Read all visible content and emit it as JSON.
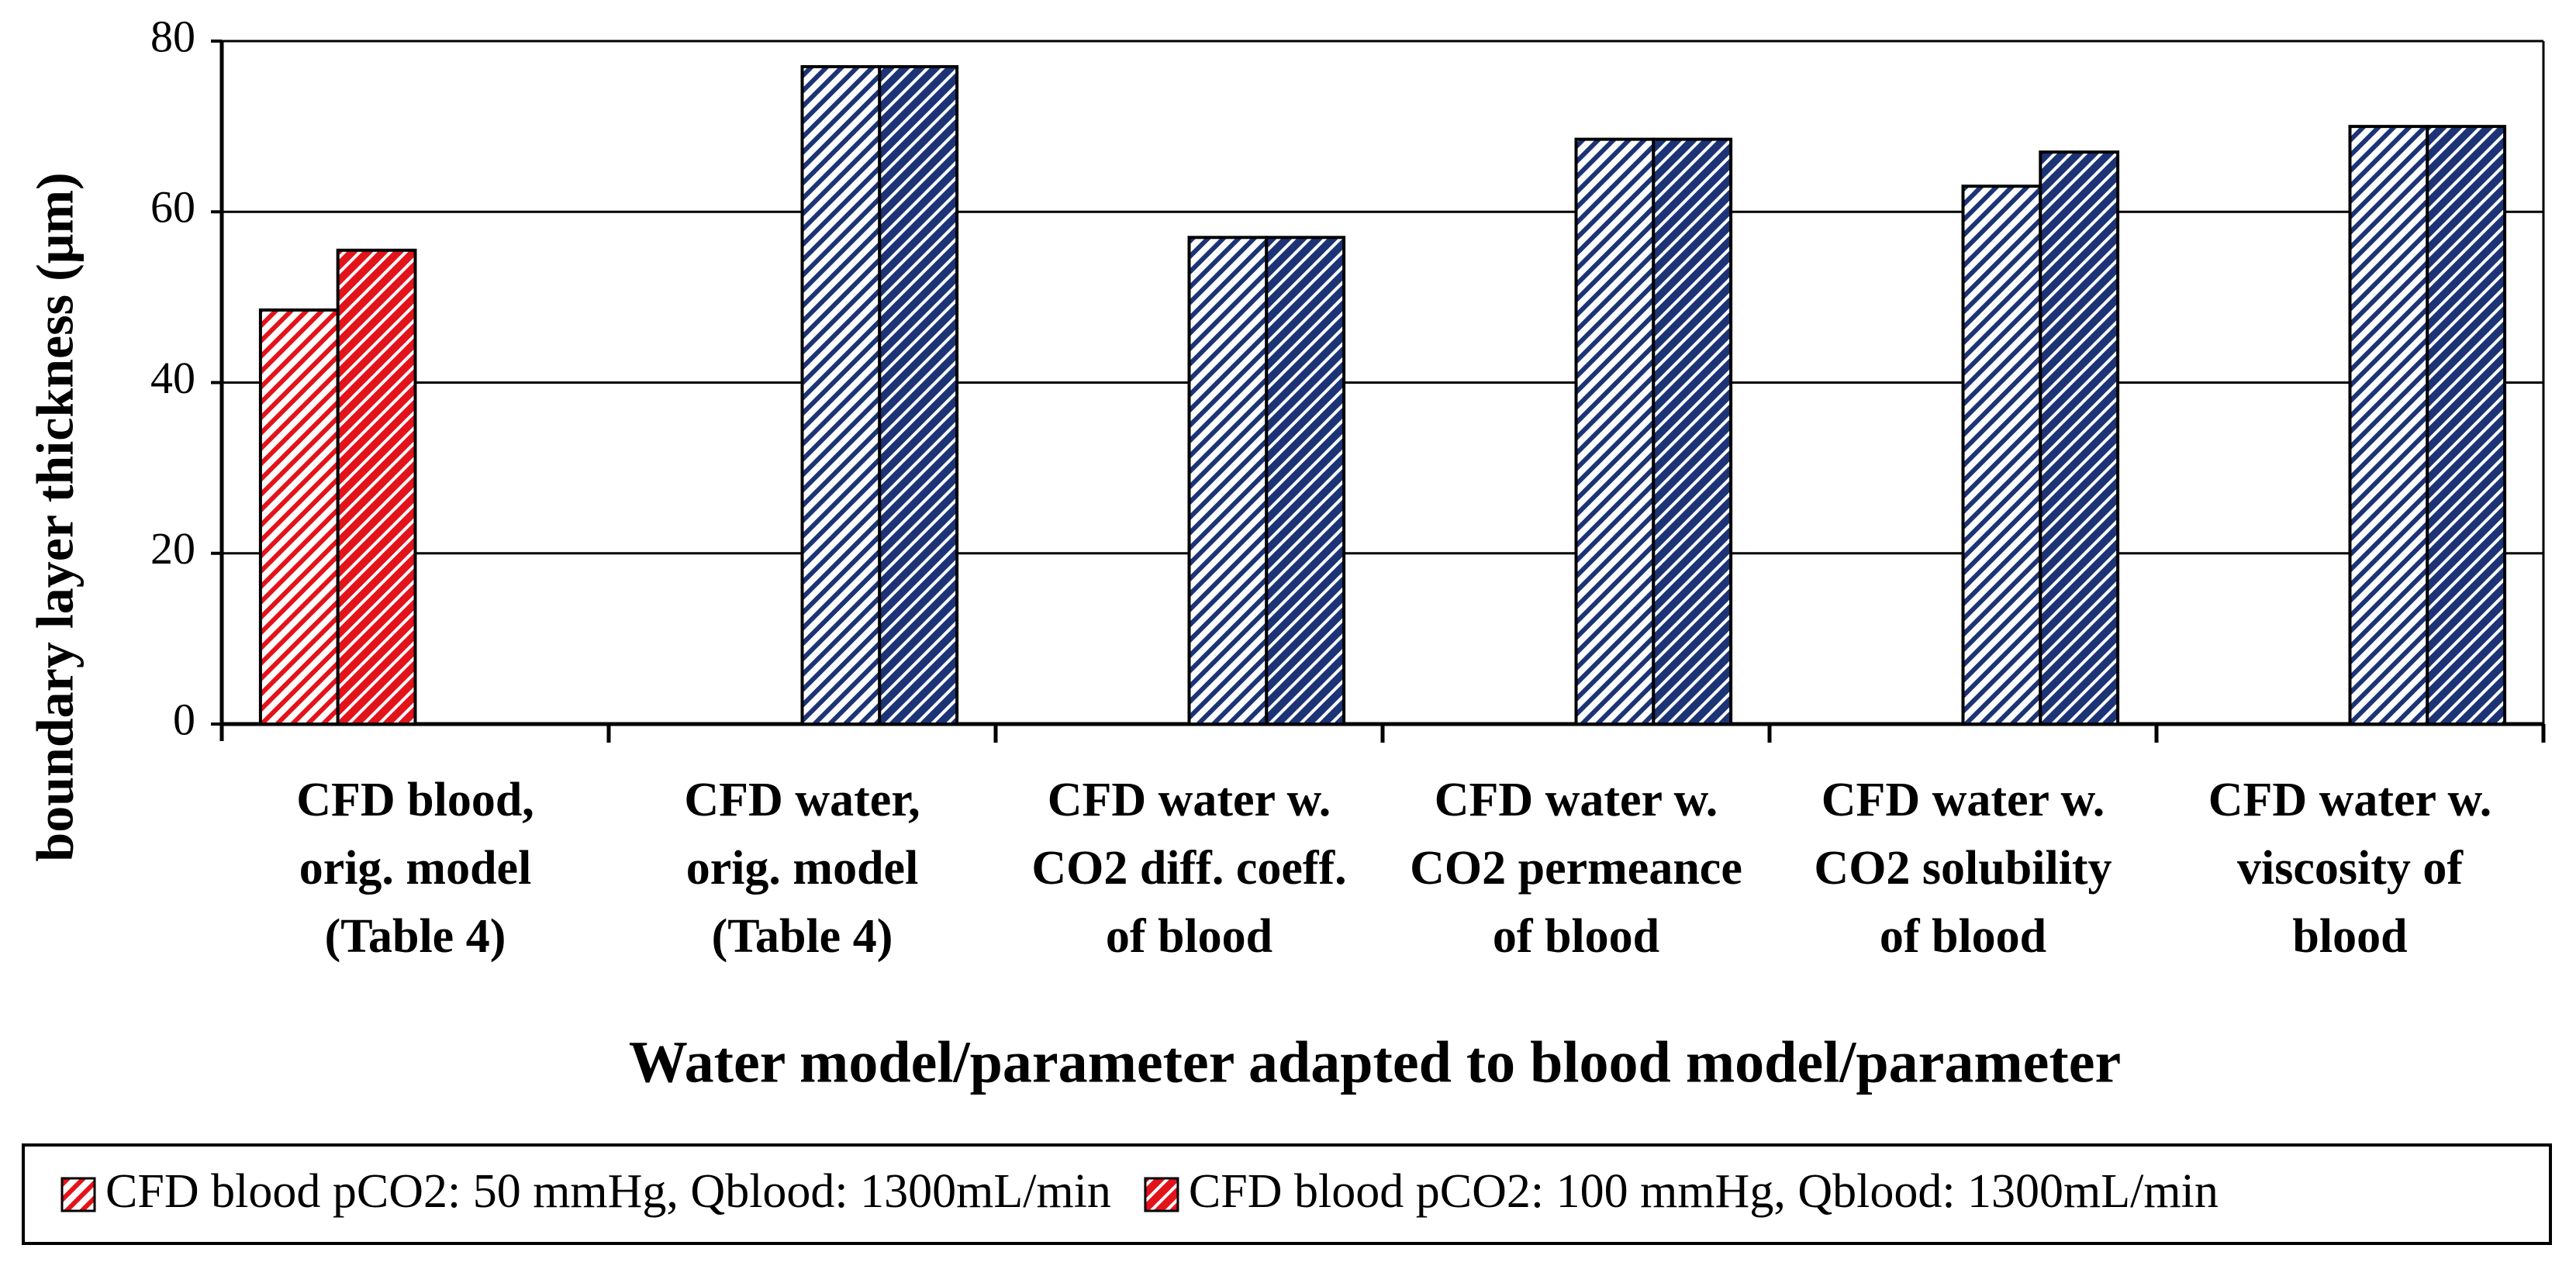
{
  "chart_data": {
    "type": "bar",
    "y_label": "boundary layer thickness (μm)",
    "x_label": "Water model/parameter adapted to blood model/parameter",
    "categories": [
      [
        "CFD blood,",
        "orig. model",
        "(Table 4)"
      ],
      [
        "CFD water,",
        "orig. model",
        "(Table 4)"
      ],
      [
        "CFD water w.",
        "CO2 diff. coeff.",
        "of blood"
      ],
      [
        "CFD water w.",
        "CO2 permeance",
        "of blood"
      ],
      [
        "CFD water w.",
        "CO2 solubility",
        "of blood"
      ],
      [
        "CFD water w.",
        "viscosity of",
        "blood"
      ]
    ],
    "series": [
      {
        "name": "CFD blood pCO2: 50 mmHg, Qblood: 1300mL/min",
        "color": "#e3131b",
        "hatch": "light",
        "values": [
          48.5,
          null,
          null,
          null,
          null,
          null
        ]
      },
      {
        "name": "CFD blood pCO2: 100 mmHg, Qblood: 1300mL/min",
        "color": "#e3131b",
        "hatch": "dense",
        "values": [
          55.5,
          null,
          null,
          null,
          null,
          null
        ]
      },
      {
        "color": "#1c3476",
        "hatch": "light",
        "values": [
          null,
          77,
          57,
          68.5,
          63,
          70
        ]
      },
      {
        "color": "#1c3476",
        "hatch": "dense",
        "values": [
          null,
          77,
          57,
          68.5,
          67,
          70
        ]
      }
    ],
    "ylim": [
      0,
      80
    ],
    "yticks": [
      0,
      20,
      40,
      60,
      80
    ],
    "grid": true,
    "legend": "bottom"
  }
}
